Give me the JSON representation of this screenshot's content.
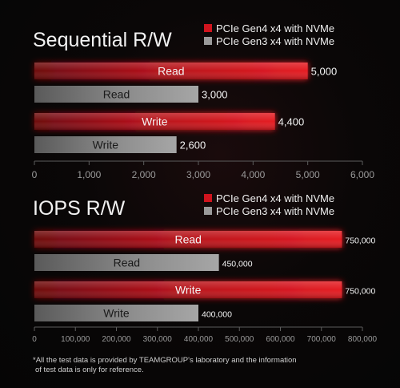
{
  "charts_meta": {
    "colors": {
      "gen4": "#d0141e",
      "gen3": "#9a9a9a"
    }
  },
  "chart_data": [
    {
      "type": "bar",
      "title": "Sequential R/W",
      "legend": [
        "PCIe Gen4 x4 with NVMe",
        "PCIe Gen3 x4 with NVMe"
      ],
      "legend_position": "top-right",
      "xlim": [
        0,
        6000
      ],
      "ticks": [
        "0",
        "1,000",
        "2,000",
        "3,000",
        "4,000",
        "5,000",
        "6,000"
      ],
      "bars": [
        {
          "series": "PCIe Gen4 x4 with NVMe",
          "label": "Read",
          "value": 5000,
          "value_text": "5,000"
        },
        {
          "series": "PCIe Gen3 x4 with NVMe",
          "label": "Read",
          "value": 3000,
          "value_text": "3,000"
        },
        {
          "series": "PCIe Gen4 x4 with NVMe",
          "label": "Write",
          "value": 4400,
          "value_text": "4,400"
        },
        {
          "series": "PCIe Gen3 x4 with NVMe",
          "label": "Write",
          "value": 2600,
          "value_text": "2,600"
        }
      ]
    },
    {
      "type": "bar",
      "title": "IOPS R/W",
      "legend": [
        "PCIe Gen4 x4 with NVMe",
        "PCIe Gen3 x4 with NVMe"
      ],
      "legend_position": "top-right",
      "xlim": [
        0,
        800000
      ],
      "ticks": [
        "0",
        "100,000",
        "200,000",
        "300,000",
        "400,000",
        "500,000",
        "600,000",
        "700,000",
        "800,000"
      ],
      "bars": [
        {
          "series": "PCIe Gen4 x4 with NVMe",
          "label": "Read",
          "value": 750000,
          "value_text": "750,000"
        },
        {
          "series": "PCIe Gen3 x4 with NVMe",
          "label": "Read",
          "value": 450000,
          "value_text": "450,000"
        },
        {
          "series": "PCIe Gen4 x4 with NVMe",
          "label": "Write",
          "value": 750000,
          "value_text": "750,000"
        },
        {
          "series": "PCIe Gen3 x4 with NVMe",
          "label": "Write",
          "value": 400000,
          "value_text": "400,000"
        }
      ]
    }
  ],
  "footnote": {
    "line1": "*All the test data is provided by TEAMGROUP's laboratory and the information",
    "line2": "of test data is only for reference."
  }
}
